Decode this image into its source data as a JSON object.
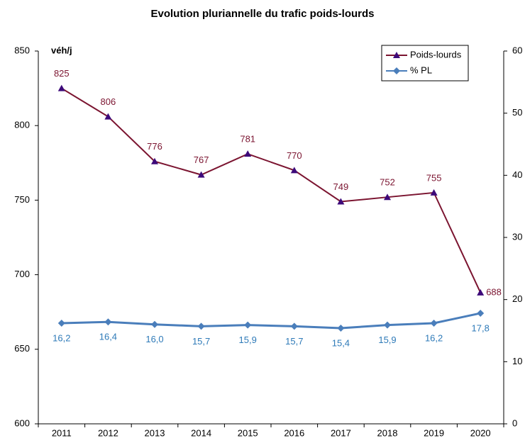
{
  "chart_data": {
    "type": "line",
    "title": "Evolution pluriannelle du trafic poids-lourds",
    "ylabel": "véh/j",
    "categories": [
      "2011",
      "2012",
      "2013",
      "2014",
      "2015",
      "2016",
      "2017",
      "2018",
      "2019",
      "2020"
    ],
    "series": [
      {
        "name": "Poids-lourds",
        "color": "#7b1430",
        "marker": "triangle",
        "marker_color": "#3d0a7a",
        "values": [
          825,
          806,
          776,
          767,
          781,
          770,
          749,
          752,
          755,
          688
        ]
      },
      {
        "name": "% PL",
        "color": "#4a7ebb",
        "marker": "diamond",
        "marker_color": "#4a7ebb",
        "label_color": "#2e7ab8",
        "axis": "y2",
        "values": [
          16.2,
          16.4,
          16.0,
          15.7,
          15.9,
          15.7,
          15.4,
          15.9,
          16.2,
          17.8
        ],
        "value_labels": [
          "16,2",
          "16,4",
          "16,0",
          "15,7",
          "15,9",
          "15,7",
          "15,4",
          "15,9",
          "16,2",
          "17,8"
        ]
      }
    ],
    "ylim": [
      600,
      850
    ],
    "yticks": [
      600,
      650,
      700,
      750,
      800,
      850
    ],
    "y2lim": [
      0,
      60
    ],
    "y2ticks": [
      0,
      10,
      20,
      30,
      40,
      50,
      60
    ],
    "legend": "top-right"
  }
}
